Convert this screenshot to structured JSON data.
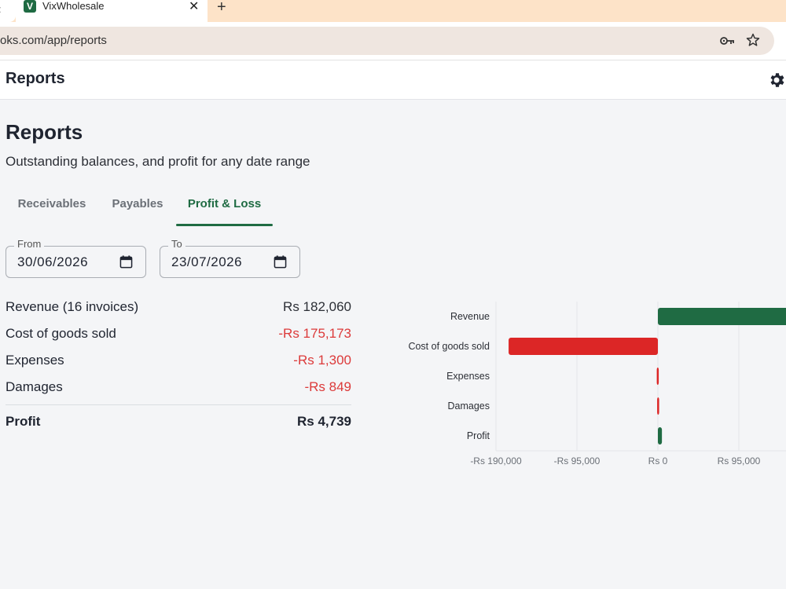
{
  "browser": {
    "tab_title": "VixWholesale",
    "favicon_letter": "V",
    "url": "oks.com/app/reports"
  },
  "app": {
    "header_title": "Reports"
  },
  "page": {
    "title": "Reports",
    "subtitle": "Outstanding balances, and profit for any date range",
    "tabs": [
      {
        "label": "Receivables"
      },
      {
        "label": "Payables"
      },
      {
        "label": "Profit & Loss"
      }
    ],
    "active_tab": "Profit & Loss",
    "from": {
      "legend": "From",
      "value": "30/06/2026"
    },
    "to": {
      "legend": "To",
      "value": "23/07/2026"
    }
  },
  "summary": {
    "rows": [
      {
        "label": "Revenue (16 invoices)",
        "amount": "Rs 182,060"
      },
      {
        "label": "Cost of goods sold",
        "amount": "-Rs 175,173"
      },
      {
        "label": "Expenses",
        "amount": "-Rs 1,300"
      },
      {
        "label": "Damages",
        "amount": "-Rs 849"
      }
    ],
    "total": {
      "label": "Profit",
      "amount": "Rs 4,739"
    }
  },
  "colors": {
    "positive": "#1f6b43",
    "negative": "#dc2626"
  },
  "chart_data": {
    "type": "bar",
    "orientation": "horizontal",
    "categories": [
      "Revenue",
      "Cost of goods sold",
      "Expenses",
      "Damages",
      "Profit"
    ],
    "values": [
      182060,
      -175173,
      -1300,
      -849,
      4739
    ],
    "xlim": [
      -190000,
      150000
    ],
    "xticks": [
      -190000,
      -95000,
      0,
      95000
    ],
    "xtick_labels": [
      "-Rs 190,000",
      "-Rs 95,000",
      "Rs 0",
      "Rs 95,000"
    ],
    "grid": true,
    "legend": "none"
  }
}
